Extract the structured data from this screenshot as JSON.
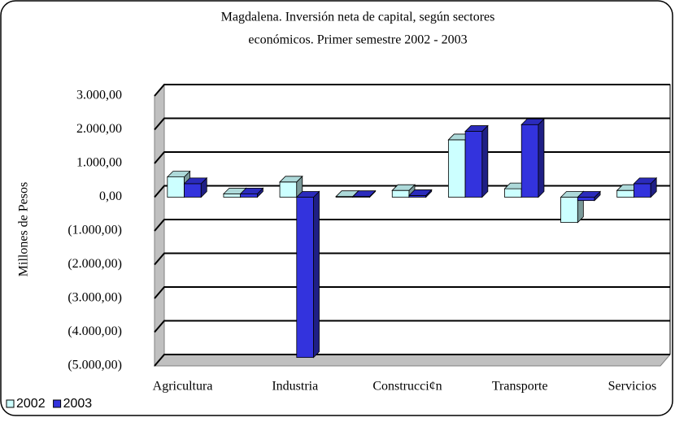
{
  "chart_data": {
    "type": "bar3d",
    "title": [
      "Magdalena. Inversión neta de capital, según sectores",
      "económicos. Primer semestre  2002 - 2003"
    ],
    "y_label": "Millones de Pesos",
    "categories": [
      "Agricultura",
      null,
      "Industria",
      null,
      "Construcci¢n",
      null,
      "Transporte",
      null,
      "Servicios"
    ],
    "series": [
      {
        "name": "2002",
        "color": "#ccffff",
        "values": [
          600,
          100,
          450,
          20,
          200,
          1700,
          250,
          -750,
          200
        ]
      },
      {
        "name": "2003",
        "color": "#3333dd",
        "values": [
          400,
          100,
          -4750,
          20,
          50,
          1950,
          2150,
          -100,
          400
        ]
      }
    ],
    "ylim": [
      -5000,
      3000
    ],
    "yticks": [
      {
        "value": -5000,
        "label": "(5.000,00)"
      },
      {
        "value": -4000,
        "label": "(4.000,00)"
      },
      {
        "value": -3000,
        "label": "(3.000,00)"
      },
      {
        "value": -2000,
        "label": "(2.000,00)"
      },
      {
        "value": -1000,
        "label": "(1.000,00)"
      },
      {
        "value": 0,
        "label": "0,00"
      },
      {
        "value": 1000,
        "label": "1.000,00"
      },
      {
        "value": 2000,
        "label": "2.000,00"
      },
      {
        "value": 3000,
        "label": "3.000,00"
      }
    ],
    "grid": true,
    "legend": "bottom-left"
  }
}
